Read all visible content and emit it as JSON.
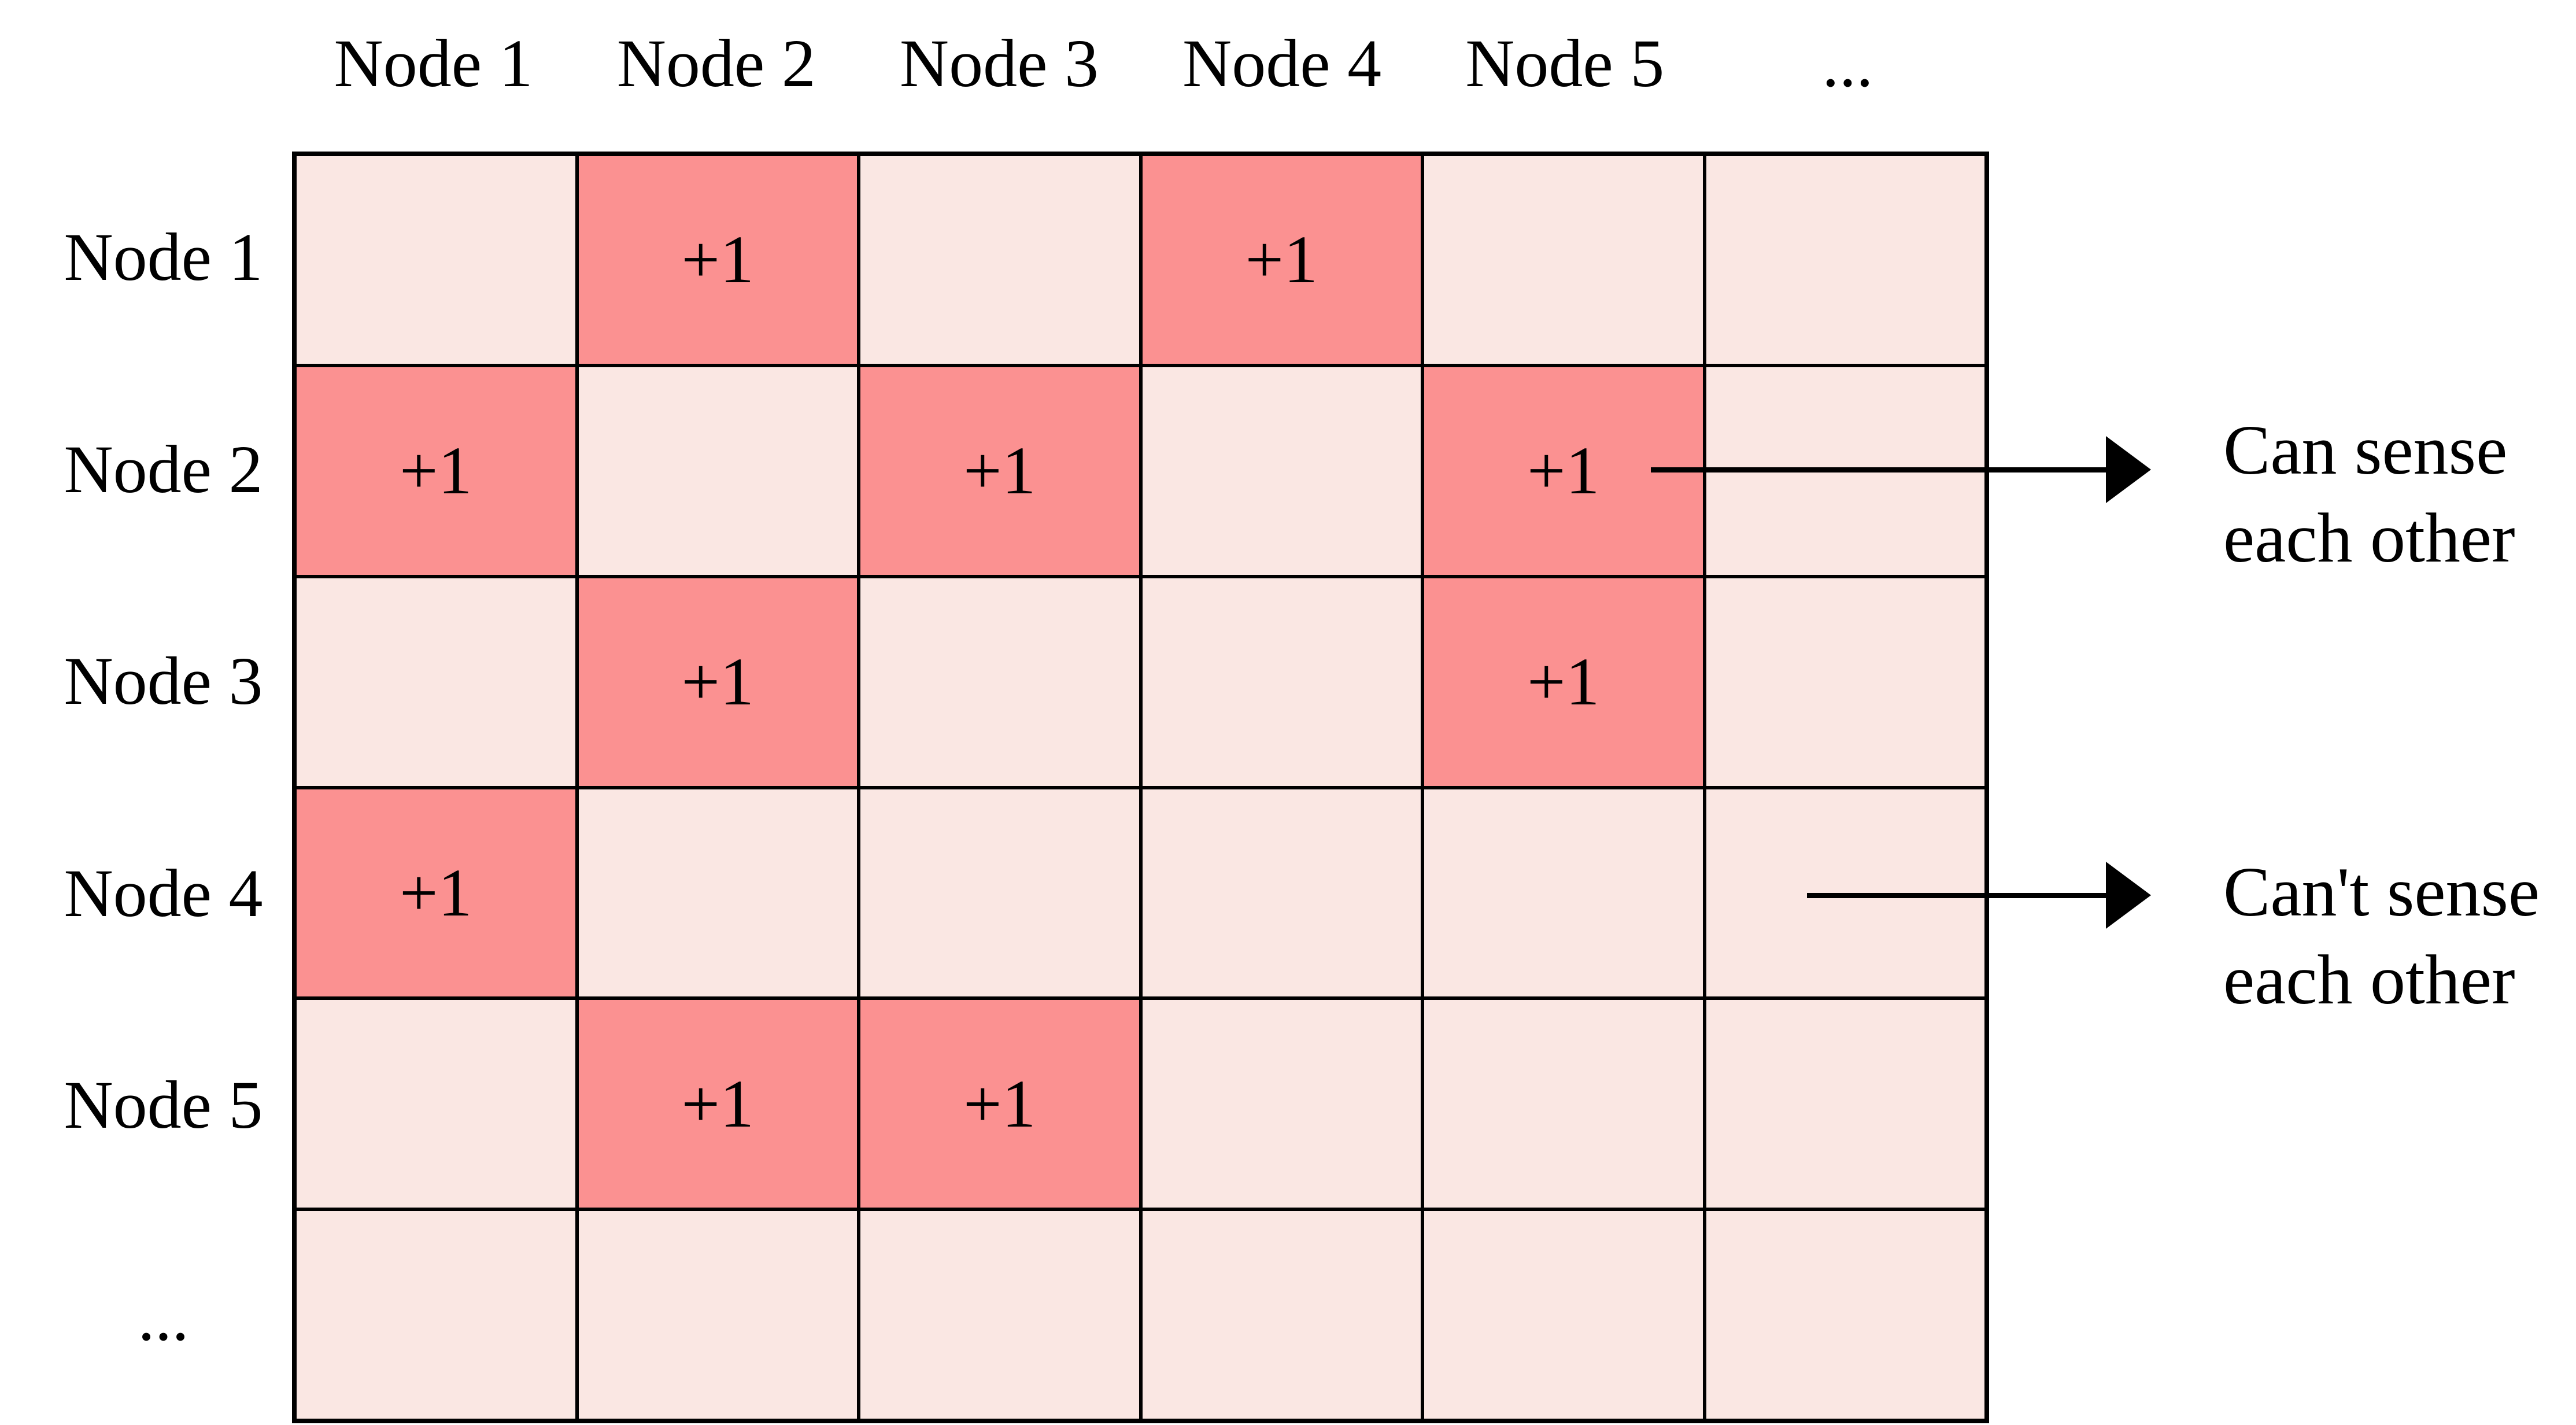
{
  "colors": {
    "highlight": "#FB9191",
    "empty_cell": "#FAE7E3",
    "grid_line": "#000000",
    "background": "#FFFFFF",
    "text": "#000000"
  },
  "matrix": {
    "column_headers": [
      "Node 1",
      "Node 2",
      "Node 3",
      "Node 4",
      "Node 5",
      "..."
    ],
    "row_headers": [
      "Node 1",
      "Node 2",
      "Node 3",
      "Node 4",
      "Node 5",
      "..."
    ],
    "cell_value": "+1",
    "cells": [
      [
        0,
        1,
        0,
        1,
        0,
        0
      ],
      [
        1,
        0,
        1,
        0,
        1,
        0
      ],
      [
        0,
        1,
        0,
        0,
        1,
        0
      ],
      [
        1,
        0,
        0,
        0,
        0,
        0
      ],
      [
        0,
        1,
        1,
        0,
        0,
        0
      ],
      [
        0,
        0,
        0,
        0,
        0,
        0
      ]
    ]
  },
  "annotations": {
    "can_sense": {
      "line1": "Can sense",
      "line2": "each other"
    },
    "cant_sense": {
      "line1": "Can't sense",
      "line2": "each other"
    }
  }
}
